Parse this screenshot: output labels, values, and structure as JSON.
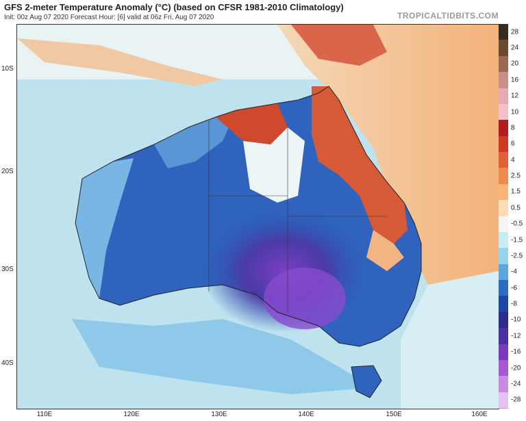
{
  "header": {
    "title": "GFS 2-meter Temperature Anomaly (°C) (based on CFSR 1981-2010 Climatology)",
    "subtitle": "Init: 00z Aug 07 2020   Forecast Hour: [6]   valid at 06z Fri, Aug 07 2020",
    "brand": "TROPICALTIDBITS.COM"
  },
  "axes": {
    "lat_labels": [
      "10S",
      "20S",
      "30S",
      "40S"
    ],
    "lon_labels": [
      "110E",
      "120E",
      "130E",
      "140E",
      "150E",
      "160E"
    ]
  },
  "colorbar": {
    "labels": [
      "28",
      "24",
      "20",
      "16",
      "12",
      "10",
      "8",
      "6",
      "4",
      "2.5",
      "1.5",
      "0.5",
      "-0.5",
      "-1.5",
      "-2.5",
      "-4",
      "-6",
      "-8",
      "-10",
      "-12",
      "-16",
      "-20",
      "-24",
      "-28"
    ],
    "colors": [
      "#3a2c1d",
      "#6b4a32",
      "#9c6a52",
      "#c98f86",
      "#e8a9b2",
      "#f3c0c9",
      "#b11c1c",
      "#cf3a25",
      "#e0603a",
      "#ef8a4f",
      "#f7b678",
      "#fbdcb4",
      "#f5f5f5",
      "#c7ecf4",
      "#97d4ec",
      "#5ca6dc",
      "#2f6cc0",
      "#1f46a0",
      "#2c2c8c",
      "#4b2fa3",
      "#7a39bf",
      "#a65ad2",
      "#c98ae0",
      "#e4c3ef"
    ]
  },
  "colors": {
    "cold_deep": "#5b3aa8",
    "cold": "#2c5fbd",
    "cool": "#6fb0e0",
    "neutral": "#f4f4f4",
    "warm": "#f7c895",
    "hot": "#d94a2a",
    "ocean_light": "#bfe3ee"
  }
}
